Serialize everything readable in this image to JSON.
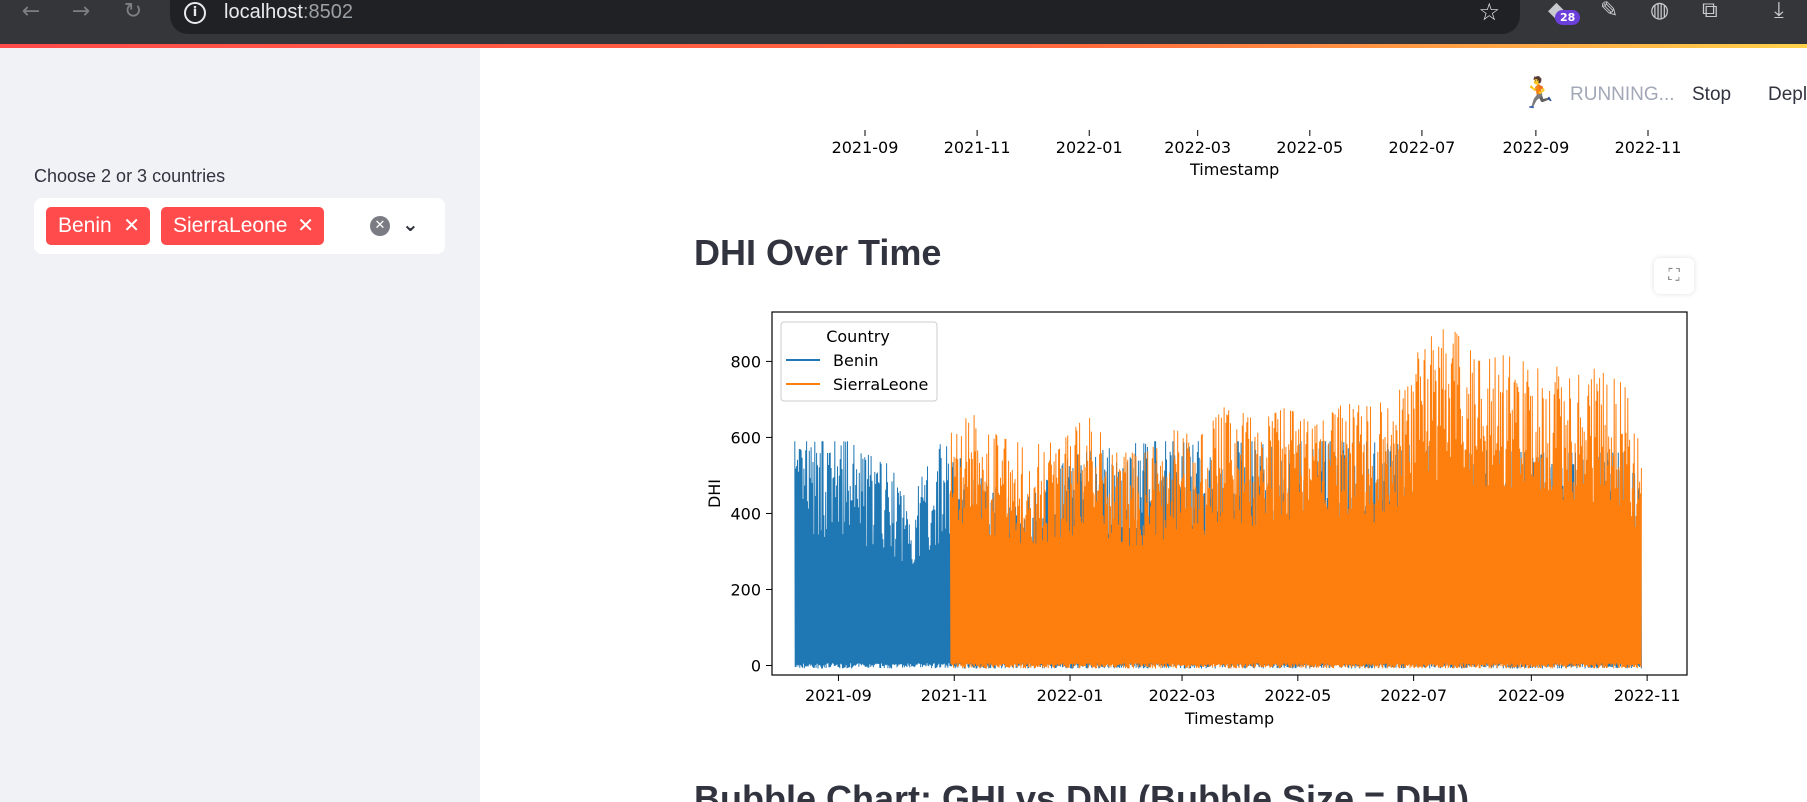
{
  "browser": {
    "url_host": "localhost",
    "url_port": ":8502",
    "extension_badge": "28"
  },
  "sidebar": {
    "label": "Choose 2 or 3 countries",
    "selected": [
      "Benin",
      "SierraLeone"
    ]
  },
  "status": {
    "running": "RUNNING...",
    "stop": "Stop",
    "deploy": "Depl"
  },
  "previous_chart": {
    "tick_labels": [
      "2021-09",
      "2021-11",
      "2022-01",
      "2022-03",
      "2022-05",
      "2022-07",
      "2022-09",
      "2022-11"
    ],
    "xlabel": "Timestamp"
  },
  "dhi_section": {
    "title": "DHI Over Time"
  },
  "next_section": {
    "title": "Bubble Chart: GHI vs DNI (Bubble Size = DHI)"
  },
  "chart_data": {
    "type": "line",
    "title": "",
    "xlabel": "Timestamp",
    "ylabel": "DHI",
    "x_ticks": [
      "2021-09",
      "2021-11",
      "2022-01",
      "2022-03",
      "2022-05",
      "2022-07",
      "2022-09",
      "2022-11"
    ],
    "y_ticks": [
      0,
      200,
      400,
      600,
      800
    ],
    "ylim": [
      -25,
      930
    ],
    "xlim": [
      "2021-07-28",
      "2022-11-22"
    ],
    "legend": {
      "title": "Country",
      "placement": "top-left"
    },
    "grid": false,
    "series": [
      {
        "name": "Benin",
        "color": "#1f77b4",
        "x_range": [
          "2021-08-09",
          "2022-10-29"
        ],
        "envelope": [
          {
            "x": "2021-08-09",
            "y": 590
          },
          {
            "x": "2021-08-25",
            "y": 590
          },
          {
            "x": "2021-09-10",
            "y": 590
          },
          {
            "x": "2021-09-25",
            "y": 540
          },
          {
            "x": "2021-10-10",
            "y": 450
          },
          {
            "x": "2021-10-25",
            "y": 590
          },
          {
            "x": "2021-11-10",
            "y": 520
          },
          {
            "x": "2021-12-05",
            "y": 420
          },
          {
            "x": "2022-01-01",
            "y": 550
          },
          {
            "x": "2022-02-01",
            "y": 590
          },
          {
            "x": "2022-03-01",
            "y": 590
          },
          {
            "x": "2022-04-01",
            "y": 590
          },
          {
            "x": "2022-05-01",
            "y": 590
          },
          {
            "x": "2022-06-01",
            "y": 590
          },
          {
            "x": "2022-07-01",
            "y": 580
          },
          {
            "x": "2022-08-01",
            "y": 570
          },
          {
            "x": "2022-09-01",
            "y": 560
          },
          {
            "x": "2022-10-01",
            "y": 560
          },
          {
            "x": "2022-10-29",
            "y": 560
          }
        ]
      },
      {
        "name": "SierraLeone",
        "color": "#ff7f0e",
        "x_range": [
          "2021-10-30",
          "2022-10-29"
        ],
        "envelope": [
          {
            "x": "2021-10-30",
            "y": 610
          },
          {
            "x": "2021-11-10",
            "y": 665
          },
          {
            "x": "2021-11-25",
            "y": 600
          },
          {
            "x": "2021-12-10",
            "y": 580
          },
          {
            "x": "2021-12-28",
            "y": 590
          },
          {
            "x": "2022-01-10",
            "y": 660
          },
          {
            "x": "2022-01-25",
            "y": 560
          },
          {
            "x": "2022-02-10",
            "y": 560
          },
          {
            "x": "2022-02-25",
            "y": 620
          },
          {
            "x": "2022-03-10",
            "y": 600
          },
          {
            "x": "2022-03-25",
            "y": 690
          },
          {
            "x": "2022-04-10",
            "y": 640
          },
          {
            "x": "2022-04-25",
            "y": 680
          },
          {
            "x": "2022-05-10",
            "y": 630
          },
          {
            "x": "2022-05-25",
            "y": 690
          },
          {
            "x": "2022-06-10",
            "y": 680
          },
          {
            "x": "2022-06-25",
            "y": 730
          },
          {
            "x": "2022-07-05",
            "y": 850
          },
          {
            "x": "2022-07-20",
            "y": 895
          },
          {
            "x": "2022-08-05",
            "y": 800
          },
          {
            "x": "2022-08-20",
            "y": 820
          },
          {
            "x": "2022-09-05",
            "y": 780
          },
          {
            "x": "2022-09-20",
            "y": 790
          },
          {
            "x": "2022-10-05",
            "y": 780
          },
          {
            "x": "2022-10-20",
            "y": 740
          },
          {
            "x": "2022-10-29",
            "y": 560
          }
        ]
      }
    ]
  }
}
